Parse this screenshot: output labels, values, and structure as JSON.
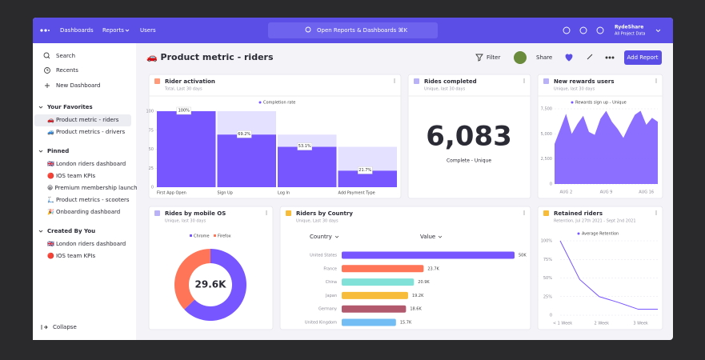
{
  "nav": {
    "items": [
      "Dashboards",
      "Reports",
      "Users"
    ],
    "search": "Open Reports & Dashboards ⌘K",
    "project": "RydeShare",
    "project_sub": "All Project Data"
  },
  "sidebar": {
    "top": [
      "Search",
      "Recents",
      "New Dashboard"
    ],
    "sections": [
      {
        "title": "Your Favorites",
        "items": [
          "🚗 Product metric - riders",
          "🚙 Product metrics - drivers"
        ]
      },
      {
        "title": "Pinned",
        "items": [
          "🇬🇧 London riders dashboard",
          "🔴 IOS team KPIs",
          "😀 Premium membership launch",
          "🛴 Product metrics - scooters",
          "🎉 Onboarding dashboard"
        ]
      },
      {
        "title": "Created By You",
        "items": [
          "🇬🇧 London riders dashboard",
          "🔴 IOS team KPIs"
        ]
      }
    ],
    "collapse": "Collapse"
  },
  "header": {
    "title": "🚗 Product metric - riders",
    "filter": "Filter",
    "share": "Share",
    "add": "Add Report"
  },
  "chart_data": [
    {
      "type": "funnel",
      "title": "Rider activation",
      "subtitle": "Total, Last 30 days",
      "categories": [
        "First App Open",
        "Sign Up",
        "Log In",
        "Add Payment Type"
      ],
      "series": [
        {
          "name": "Completion rate",
          "color": "#7856ff",
          "values": [
            100,
            69.2,
            53.1,
            21.7
          ],
          "value_labels": [
            "100%",
            "69.2%",
            "53.1%",
            "21.7%"
          ]
        }
      ],
      "ylim": [
        0,
        100
      ],
      "yticks": [
        0,
        25,
        50,
        75,
        100
      ]
    },
    {
      "type": "metric",
      "title": "Rides completed",
      "subtitle": "Unique, last 30 days",
      "values": [
        6083
      ],
      "value_labels": [
        "6,083"
      ],
      "caption": "Complete - Unique"
    },
    {
      "type": "area",
      "title": "New rewards users",
      "subtitle": "Unique, last 30 days",
      "categories": [
        null,
        null,
        "AUG 2",
        null,
        null,
        null,
        null,
        null,
        null,
        "AUG 9",
        null,
        null,
        null,
        null,
        null,
        null,
        "AUG 16",
        null,
        null
      ],
      "series": [
        {
          "name": "Rewards sign up - Unique",
          "color": "#7856ff",
          "values": [
            4000,
            5500,
            7000,
            5000,
            6000,
            6800,
            5200,
            4900,
            6500,
            7300,
            6200,
            5500,
            4600,
            5800,
            6900,
            7300,
            5900,
            6600,
            6200
          ]
        }
      ],
      "ylim": [
        0,
        7500
      ],
      "yticks": [
        0,
        {
          "value": 2500,
          "label": "2,500"
        },
        {
          "value": 5000,
          "label": "5,000"
        },
        {
          "value": 7500,
          "label": "7,500"
        }
      ]
    },
    {
      "type": "donut",
      "title": "Rides by mobile OS",
      "subtitle": "Unique, last 30 days",
      "categories": [
        "Chrome",
        "Firefox"
      ],
      "values": [
        63,
        37
      ],
      "colors": [
        "#7856ff",
        "#ff7557"
      ],
      "total": 29600,
      "total_label": "29.6K"
    },
    {
      "type": "hbar",
      "title": "Riders by Country",
      "subtitle": "Unique, Last 30 days",
      "columns": [
        "Country",
        "Value"
      ],
      "categories": [
        "United States",
        "France",
        "China",
        "Japan",
        "Germany",
        "United Kingdom"
      ],
      "values": [
        50000,
        23700,
        20900,
        19200,
        18600,
        15700
      ],
      "value_labels": [
        "50K",
        "23.7K",
        "20.9K",
        "19.2K",
        "18.6K",
        "15.7K"
      ],
      "colors": [
        "#7856ff",
        "#ff7557",
        "#80e1d9",
        "#f8bc3b",
        "#b2596e",
        "#72bef4"
      ]
    },
    {
      "type": "line",
      "title": "Retained riders",
      "subtitle": "Retention, Jul 27th 2021 - Sept 2nd 2021",
      "categories": [
        "< 1 Week",
        null,
        "2 Week",
        null,
        "3 Week",
        null
      ],
      "series": [
        {
          "name": "Average Retention",
          "color": "#7856ff",
          "values": [
            100,
            48,
            25,
            17,
            8,
            8
          ]
        }
      ],
      "ylim": [
        0,
        100
      ],
      "yticks": [
        {
          "value": 0,
          "label": "0"
        },
        {
          "value": 25,
          "label": "25%"
        },
        {
          "value": 50,
          "label": "50%"
        },
        {
          "value": 75,
          "label": "75%"
        },
        {
          "value": 100,
          "label": "100%"
        }
      ]
    }
  ]
}
